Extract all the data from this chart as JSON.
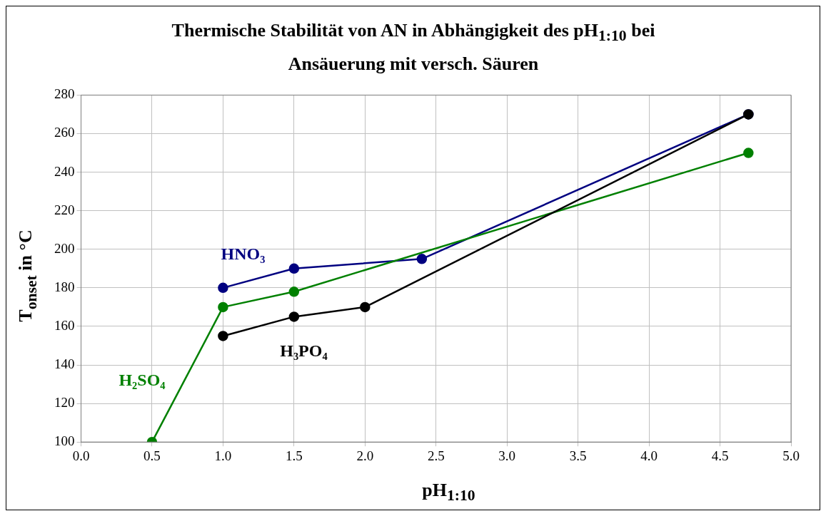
{
  "chart_data": {
    "type": "line",
    "title": "Thermische Stabilität von AN in Abhängigkeit des pH$_{1:10}$ bei Ansäuerung mit versch. Säuren",
    "xlabel": "pH$_{1:10}$",
    "ylabel": "T$_{onset}$ in °C",
    "series": [
      {
        "name": "HNO₃",
        "color": "#000080",
        "x": [
          1.0,
          1.5,
          2.4,
          4.7
        ],
        "values": [
          180,
          190,
          195,
          270
        ]
      },
      {
        "name": "H₂SO₄",
        "color": "#008000",
        "x": [
          0.5,
          1.0,
          1.5,
          4.7
        ],
        "values": [
          100,
          170,
          178,
          250
        ]
      },
      {
        "name": "H₃PO₄",
        "color": "#000000",
        "x": [
          1.0,
          1.5,
          2.0,
          4.7
        ],
        "values": [
          155,
          165,
          170,
          270
        ]
      }
    ],
    "xlim": [
      0,
      5
    ],
    "xticks": [
      {
        "value": 0,
        "label": "0.0"
      },
      {
        "value": 0.5,
        "label": "0.5"
      },
      {
        "value": 1,
        "label": "1.0"
      },
      {
        "value": 1.5,
        "label": "1.5"
      },
      {
        "value": 2,
        "label": "2.0"
      },
      {
        "value": 2.5,
        "label": "2.5"
      },
      {
        "value": 3,
        "label": "3.0"
      },
      {
        "value": 3.5,
        "label": "3.5"
      },
      {
        "value": 4,
        "label": "4.0"
      },
      {
        "value": 4.5,
        "label": "4.5"
      },
      {
        "value": 5,
        "label": "5.0"
      }
    ],
    "ylim": [
      100,
      280
    ],
    "yticks": [
      100,
      120,
      140,
      160,
      180,
      200,
      220,
      240,
      260,
      280
    ],
    "grid": true,
    "legend": false,
    "marker": "circle",
    "line_style": "solid"
  }
}
